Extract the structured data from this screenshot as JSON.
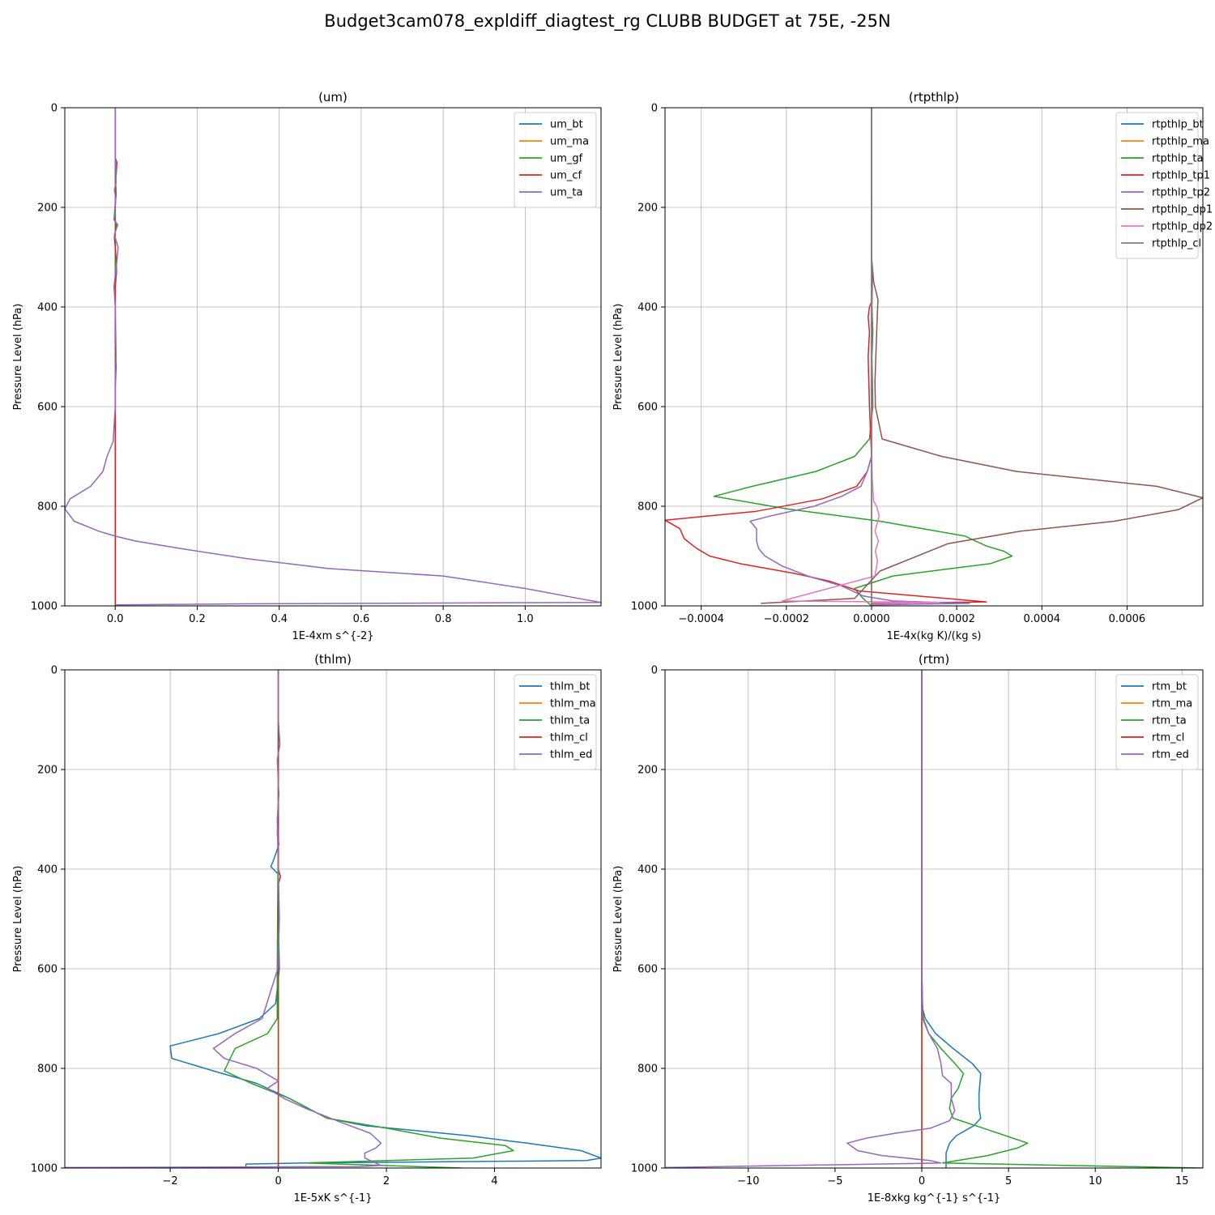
{
  "figure": {
    "suptitle": "Budget3cam078_expldiff_diagtest_rg CLUBB BUDGET at 75E, -25N"
  },
  "chart_data": [
    {
      "type": "line",
      "title": "(um)",
      "xlabel": "1E-4xm s^{-2}",
      "ylabel": "Pressure Level (hPa)",
      "xlim": [
        -0.123,
        1.185
      ],
      "ylim": [
        1000,
        0
      ],
      "xticks": [
        0.0,
        0.2,
        0.4,
        0.6,
        0.8,
        1.0
      ],
      "xtick_labels": [
        "0.0",
        "0.2",
        "0.4",
        "0.6",
        "0.8",
        "1.0"
      ],
      "yticks": [
        0,
        200,
        400,
        600,
        800,
        1000
      ],
      "ytick_labels": [
        "0",
        "200",
        "400",
        "600",
        "800",
        "1000"
      ],
      "grid": true,
      "legend": "upper right",
      "series": [
        {
          "name": "um_bt",
          "color": "#1f77b4",
          "x": [
            0,
            0
          ],
          "y": [
            0,
            1000
          ]
        },
        {
          "name": "um_ma",
          "color": "#ff7f0e",
          "x": [
            0,
            0
          ],
          "y": [
            0,
            1000
          ]
        },
        {
          "name": "um_gf",
          "color": "#2ca02c",
          "x": [
            0,
            0
          ],
          "y": [
            0,
            1000
          ]
        },
        {
          "name": "um_cf",
          "color": "#d62728",
          "x": [
            0,
            0,
            0.004,
            0.001,
            0.002,
            -0.002,
            0.003,
            -0.002,
            0.002,
            0.003,
            0,
            0,
            0,
            0.002,
            0,
            0,
            0,
            0,
            0
          ],
          "y": [
            0,
            100,
            110,
            150,
            175,
            220,
            235,
            260,
            300,
            330,
            360,
            400,
            450,
            520,
            560,
            600,
            650,
            700,
            1000
          ]
        },
        {
          "name": "um_ta",
          "color": "#9467bd",
          "x": [
            0,
            0,
            0.002,
            -0.002,
            0.001,
            -0.003,
            0.006,
            -0.002,
            0.007,
            0.005,
            -0.003,
            -0.002,
            0,
            0.002,
            0,
            0,
            -0.005,
            -0.02,
            -0.03,
            -0.06,
            -0.11,
            -0.123,
            -0.1,
            -0.04,
            0.0,
            0.05,
            0.16,
            0.32,
            0.52,
            0.8,
            1.0,
            1.13,
            1.185,
            0.3,
            0.0
          ],
          "y": [
            0,
            100,
            150,
            165,
            180,
            225,
            235,
            255,
            280,
            300,
            360,
            370,
            400,
            500,
            520,
            600,
            670,
            700,
            730,
            760,
            785,
            805,
            830,
            850,
            860,
            870,
            885,
            905,
            925,
            940,
            965,
            985,
            993,
            996,
            998
          ]
        }
      ]
    },
    {
      "type": "line",
      "title": "(rtpthlp)",
      "xlabel": "1E-4x(kg K)/(kg s)",
      "ylabel": "Pressure Level (hPa)",
      "xlim": [
        -0.000485,
        0.000778
      ],
      "ylim": [
        1000,
        0
      ],
      "xticks": [
        -0.0004,
        -0.0002,
        0.0,
        0.0002,
        0.0004,
        0.0006
      ],
      "xtick_labels": [
        "−0.0004",
        "−0.0002",
        "0.0000",
        "0.0002",
        "0.0004",
        "0.0006"
      ],
      "yticks": [
        0,
        200,
        400,
        600,
        800,
        1000
      ],
      "ytick_labels": [
        "0",
        "200",
        "400",
        "600",
        "800",
        "1000"
      ],
      "grid": true,
      "legend": "upper right",
      "series": [
        {
          "name": "rtpthlp_bt",
          "color": "#1f77b4",
          "x": [
            0,
            0
          ],
          "y": [
            0,
            1000
          ]
        },
        {
          "name": "rtpthlp_ma",
          "color": "#ff7f0e",
          "x": [
            0,
            0
          ],
          "y": [
            0,
            1000
          ]
        },
        {
          "name": "rtpthlp_ta",
          "color": "#2ca02c",
          "x": [
            0,
            0,
            2e-06,
            1e-06,
            3e-06,
            1e-06,
            3e-06,
            -5e-06,
            -4e-05,
            -0.00013,
            -0.00028,
            -0.00037,
            -0.0002,
            2e-05,
            0.00022,
            0.00027,
            0.00031,
            0.00033,
            0.00028,
            5e-05,
            -4e-05,
            -2e-05,
            0
          ],
          "y": [
            0,
            300,
            350,
            400,
            450,
            500,
            600,
            665,
            700,
            730,
            760,
            780,
            805,
            830,
            860,
            880,
            890,
            900,
            915,
            940,
            965,
            985,
            1000
          ]
        },
        {
          "name": "rtpthlp_tp1",
          "color": "#d62728",
          "x": [
            0,
            0,
            -5e-06,
            -8e-06,
            -5e-06,
            -8e-06,
            -5e-06,
            0,
            -1e-05,
            -3.5e-05,
            -0.000115,
            -0.00027,
            -0.000485,
            -0.00045,
            -0.00044,
            -0.00041,
            -0.00038,
            -0.00031,
            -0.00018,
            -0.0001,
            -3e-05,
            0.00027,
            0
          ],
          "y": [
            0,
            390,
            400,
            420,
            450,
            500,
            600,
            700,
            730,
            760,
            785,
            810,
            828,
            845,
            865,
            885,
            900,
            915,
            935,
            950,
            970,
            992,
            995
          ]
        },
        {
          "name": "rtpthlp_tp2",
          "color": "#9467bd",
          "x": [
            0,
            0,
            -1e-05,
            -2.5e-05,
            -7e-05,
            -0.000135,
            -0.00024,
            -0.000285,
            -0.00027,
            -0.00027,
            -0.000265,
            -0.00025,
            -0.00021,
            -0.00015,
            -7e-05,
            -2e-05,
            5e-05,
            0.00023,
            0
          ],
          "y": [
            0,
            700,
            730,
            760,
            780,
            800,
            820,
            830,
            845,
            870,
            885,
            900,
            920,
            940,
            960,
            980,
            990,
            995,
            998
          ]
        },
        {
          "name": "rtpthlp_dp1",
          "color": "#8c564b",
          "x": [
            0,
            0,
            5e-06,
            1.5e-05,
            1.2e-05,
            8e-06,
            9e-06,
            2.5e-05,
            0.000165,
            0.00034,
            0.00067,
            0.000778,
            0.00072,
            0.00057,
            0.00035,
            0.00018,
            2e-05,
            -4e-05,
            -0.00026
          ],
          "y": [
            0,
            300,
            350,
            385,
            450,
            550,
            600,
            665,
            700,
            730,
            760,
            783,
            807,
            830,
            850,
            875,
            930,
            985,
            995
          ]
        },
        {
          "name": "rtpthlp_dp2",
          "color": "#e377c2",
          "x": [
            0,
            0,
            2e-06,
            5e-06,
            1.2e-05,
            1.8e-05,
            8e-06,
            1.6e-05,
            9e-06,
            1.4e-05,
            8e-06,
            -0.00021,
            0.00016,
            0
          ],
          "y": [
            0,
            700,
            750,
            790,
            800,
            820,
            850,
            870,
            890,
            910,
            940,
            990,
            993,
            996
          ]
        },
        {
          "name": "rtpthlp_cl",
          "color": "#7f7f7f",
          "x": [
            0,
            0
          ],
          "y": [
            0,
            1000
          ]
        }
      ]
    },
    {
      "type": "line",
      "title": "(thlm)",
      "xlabel": "1E-5xK s^{-1}",
      "ylabel": "Pressure Level (hPa)",
      "xlim": [
        -3.95,
        5.97
      ],
      "ylim": [
        1000,
        0
      ],
      "xticks": [
        -2,
        0,
        2,
        4
      ],
      "xtick_labels": [
        "−2",
        "0",
        "2",
        "4"
      ],
      "yticks": [
        0,
        200,
        400,
        600,
        800,
        1000
      ],
      "ytick_labels": [
        "0",
        "200",
        "400",
        "600",
        "800",
        "1000"
      ],
      "grid": true,
      "legend": "upper right",
      "series": [
        {
          "name": "thlm_bt",
          "color": "#1f77b4",
          "x": [
            0,
            0,
            -0.02,
            0.01,
            -0.05,
            -0.1,
            -0.14,
            0,
            0,
            0.02,
            -0.05,
            -0.35,
            -1.1,
            -2.0,
            -1.97,
            -1.2,
            -0.4,
            0.2,
            0.9,
            1.6,
            3.5,
            4.6,
            5.6,
            5.97,
            5.7,
            0.5,
            -0.6,
            -0.6
          ],
          "y": [
            0,
            300,
            330,
            350,
            370,
            385,
            395,
            410,
            500,
            600,
            670,
            700,
            730,
            755,
            780,
            805,
            830,
            860,
            900,
            915,
            935,
            950,
            965,
            980,
            985,
            990,
            992,
            1000
          ]
        },
        {
          "name": "thlm_ma",
          "color": "#ff7f0e",
          "x": [
            0,
            0
          ],
          "y": [
            0,
            1000
          ]
        },
        {
          "name": "thlm_ta",
          "color": "#2ca02c",
          "x": [
            0,
            0,
            -0.02,
            -0.02,
            -0.2,
            -0.8,
            -1.0,
            -0.5,
            0.2,
            0.9,
            2.0,
            3.0,
            4.2,
            4.35,
            3.6,
            0.5,
            3.4
          ],
          "y": [
            0,
            300,
            600,
            700,
            730,
            760,
            805,
            830,
            860,
            900,
            920,
            940,
            955,
            965,
            980,
            990,
            1000
          ]
        },
        {
          "name": "thlm_cl",
          "color": "#d62728",
          "x": [
            0,
            0,
            0.04,
            0,
            0,
            0
          ],
          "y": [
            0,
            400,
            415,
            430,
            500,
            1000
          ]
        },
        {
          "name": "thlm_ed",
          "color": "#9467bd",
          "x": [
            0,
            0,
            0.03,
            -0.02,
            0.01,
            -0.02,
            0.02,
            -0.01,
            -0.3,
            -0.8,
            -1.2,
            -1.0,
            -0.4,
            0,
            -0.2,
            0.1,
            0.5,
            1.2,
            1.7,
            1.9,
            1.8,
            1.6,
            1.6,
            1.9,
            1.5,
            -3.95
          ],
          "y": [
            0,
            100,
            150,
            180,
            250,
            300,
            500,
            600,
            700,
            730,
            760,
            780,
            800,
            825,
            840,
            860,
            880,
            910,
            930,
            950,
            960,
            970,
            980,
            995,
            997,
            999
          ]
        }
      ]
    },
    {
      "type": "line",
      "title": "(rtm)",
      "xlabel": "1E-8xkg kg^{-1} s^{-1}",
      "ylabel": "Pressure Level (hPa)",
      "xlim": [
        -14.8,
        16.2
      ],
      "ylim": [
        1000,
        0
      ],
      "xticks": [
        -10,
        -5,
        0,
        5,
        10,
        15
      ],
      "xtick_labels": [
        "−10",
        "−5",
        "0",
        "5",
        "10",
        "15"
      ],
      "yticks": [
        0,
        200,
        400,
        600,
        800,
        1000
      ],
      "ytick_labels": [
        "0",
        "200",
        "400",
        "600",
        "800",
        "1000"
      ],
      "grid": true,
      "legend": "upper right",
      "series": [
        {
          "name": "rtm_bt",
          "color": "#1f77b4",
          "x": [
            0,
            0,
            0.05,
            0.2,
            0.8,
            1.8,
            2.9,
            3.4,
            3.3,
            3.3,
            3.4,
            3.0,
            2.0,
            1.6,
            1.4,
            1.4,
            1.4
          ],
          "y": [
            0,
            600,
            680,
            700,
            730,
            760,
            790,
            810,
            850,
            880,
            900,
            915,
            935,
            950,
            970,
            985,
            1000
          ]
        },
        {
          "name": "rtm_ma",
          "color": "#ff7f0e",
          "x": [
            0,
            0
          ],
          "y": [
            0,
            1000
          ]
        },
        {
          "name": "rtm_ta",
          "color": "#2ca02c",
          "x": [
            0,
            0,
            0.1,
            0.4,
            1.1,
            1.9,
            2.4,
            2.1,
            1.7,
            1.6,
            1.8,
            3.1,
            4.4,
            6.1,
            5.5,
            3.8,
            1.2,
            16.2
          ],
          "y": [
            0,
            650,
            700,
            730,
            760,
            790,
            810,
            840,
            860,
            880,
            900,
            915,
            930,
            950,
            960,
            975,
            990,
            1000
          ]
        },
        {
          "name": "rtm_cl",
          "color": "#d62728",
          "x": [
            0,
            0
          ],
          "y": [
            0,
            1000
          ]
        },
        {
          "name": "rtm_ed",
          "color": "#9467bd",
          "x": [
            0,
            0,
            0.05,
            0.4,
            0.9,
            1.1,
            1.2,
            1.7,
            1.7,
            1.9,
            1.6,
            0.5,
            -1.5,
            -3.2,
            -4.3,
            -3.7,
            -2.3,
            0.5,
            1.1,
            -14.8
          ],
          "y": [
            0,
            600,
            700,
            730,
            760,
            790,
            815,
            830,
            860,
            885,
            905,
            920,
            930,
            940,
            950,
            965,
            975,
            985,
            990,
            999
          ]
        }
      ]
    }
  ]
}
